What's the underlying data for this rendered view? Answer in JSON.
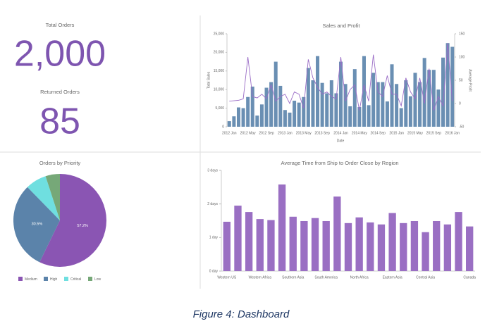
{
  "kpis": [
    {
      "label": "Total Orders",
      "value": "2,000"
    },
    {
      "label": "Returned Orders",
      "value": "85"
    }
  ],
  "caption": "Figure 4: Dashboard",
  "chart_data": [
    {
      "type": "combo",
      "title": "Sales and Profit",
      "x_label": "Date",
      "y_label": "Total Sales",
      "y2_label": "Average Profit",
      "categories": [
        "2012 Jan",
        null,
        null,
        null,
        "2012 May",
        null,
        null,
        null,
        "2012 Sep",
        null,
        null,
        null,
        "2013 Jan",
        null,
        null,
        null,
        "2013 May",
        null,
        null,
        null,
        "2013 Sep",
        null,
        null,
        null,
        "2014 Jan",
        null,
        null,
        null,
        "2014 May",
        null,
        null,
        null,
        "2014 Sep",
        null,
        null,
        null,
        "2015 Jan",
        null,
        null,
        null,
        "2015 May",
        null,
        null,
        null,
        "2015 Sep",
        null,
        null,
        null,
        "2016 Jan"
      ],
      "series": [
        {
          "name": "Total Sales",
          "type": "bar",
          "axis": "y",
          "color": "#6a8fb3",
          "values": [
            1500,
            2800,
            5200,
            5000,
            8000,
            10800,
            3000,
            6000,
            10500,
            12000,
            17500,
            11000,
            4500,
            3800,
            7000,
            6500,
            8000,
            15800,
            12500,
            19000,
            11800,
            9000,
            12500,
            9000,
            17500,
            11500,
            5500,
            15500,
            5300,
            19000,
            5800,
            14500,
            12000,
            12000,
            6800,
            16800,
            11500,
            5000,
            12500,
            8200,
            14500,
            12000,
            18500,
            15300,
            15300,
            10000,
            18600,
            22500,
            21500
          ]
        },
        {
          "name": "Average Profit",
          "type": "line",
          "axis": "y2",
          "color": "#9a6cc6",
          "values": [
            5,
            6,
            7,
            10,
            100,
            15,
            12,
            20,
            10,
            40,
            5,
            15,
            20,
            0,
            25,
            20,
            -10,
            95,
            55,
            35,
            20,
            25,
            15,
            10,
            100,
            5,
            30,
            40,
            -15,
            40,
            5,
            105,
            25,
            15,
            60,
            20,
            20,
            -5,
            55,
            25,
            10,
            55,
            0,
            75,
            -15,
            15,
            -5,
            130,
            5
          ]
        }
      ],
      "ylim": [
        0,
        25000
      ],
      "yticks": [
        0,
        {
          "value": 5000,
          "label": "5,000"
        },
        {
          "value": 10000,
          "label": "10,000"
        },
        {
          "value": 15000,
          "label": "15,000"
        },
        {
          "value": 20000,
          "label": "20,000"
        },
        {
          "value": 25000,
          "label": "25,000"
        }
      ],
      "y2lim": [
        -50,
        150
      ],
      "y2ticks": [
        -50,
        0,
        50,
        100,
        150
      ]
    },
    {
      "type": "pie",
      "title": "Orders by Priority",
      "categories": [
        "Medium",
        "High",
        "Critical",
        "Low"
      ],
      "values": [
        57.2,
        30.5,
        7.3,
        5.0
      ],
      "value_labels": [
        "57.2%",
        "30.5%",
        null,
        null
      ],
      "colors": [
        "#8a55b3",
        "#5b83aa",
        "#6fdfe0",
        "#76a878"
      ],
      "legend": "bottom"
    },
    {
      "type": "bar",
      "title": "Average Time from Ship to Order Close by Region",
      "color": "#9a6fc3",
      "categories": [
        "Western US",
        null,
        null,
        "Western Africa",
        null,
        null,
        "Southern Asia",
        null,
        null,
        "South America",
        null,
        null,
        "North Africa",
        null,
        null,
        "Eastern Asia",
        null,
        null,
        "Central Asia",
        null,
        null,
        null,
        "Canada"
      ],
      "values": [
        1.47,
        1.95,
        1.76,
        1.55,
        1.52,
        2.58,
        1.62,
        1.49,
        1.58,
        1.49,
        2.22,
        1.43,
        1.6,
        1.45,
        1.39,
        1.73,
        1.43,
        1.49,
        1.16,
        1.49,
        1.39,
        1.76,
        1.33
      ],
      "ylim": [
        0,
        3
      ],
      "yticks": [
        {
          "value": 0,
          "label": "0 day"
        },
        {
          "value": 1,
          "label": "1 day"
        },
        {
          "value": 2,
          "label": "2 days"
        },
        {
          "value": 3,
          "label": "3 days"
        }
      ]
    }
  ]
}
